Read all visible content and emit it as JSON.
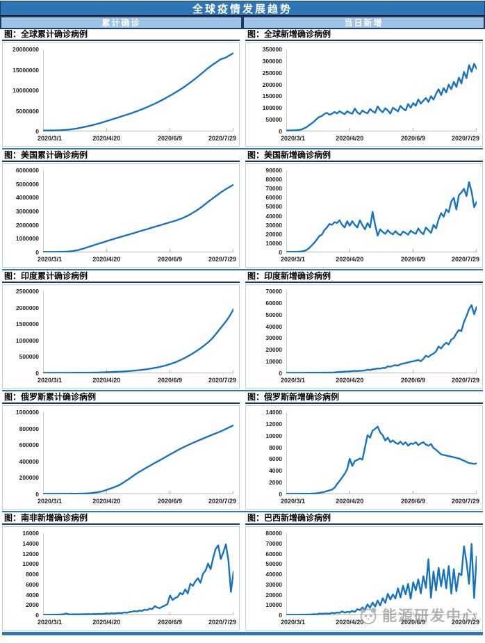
{
  "page": {
    "title": "全球疫情发展趋势",
    "column_headers": [
      "累计确诊",
      "当日新增"
    ],
    "watermark_text": "能源研发中心"
  },
  "colors": {
    "header_bar": "#2E75B6",
    "subheader_bar": "#9DC3E6",
    "border_dark": "#1F3864",
    "title_underline": "#17375E",
    "line": "#1673C4",
    "chart_border": "#BDD0E2",
    "axis_text": "#1F1F1F",
    "bottom_bar": "#2E75B6",
    "watermark_gray": "#888B90"
  },
  "chart_data": [
    {
      "type": "line",
      "title": "图：全球累计确诊病例",
      "x_ticks": [
        "2020/3/1",
        "2020/4/20",
        "2020/6/9",
        "2020/7/29"
      ],
      "ylim": [
        0,
        20000000
      ],
      "yticks": [
        0,
        5000000,
        10000000,
        15000000,
        20000000
      ],
      "values": [
        90000,
        95000,
        100000,
        105000,
        110000,
        120000,
        140000,
        170000,
        200000,
        250000,
        300000,
        380000,
        470000,
        560000,
        670000,
        800000,
        930000,
        1070000,
        1210000,
        1350000,
        1500000,
        1670000,
        1840000,
        2020000,
        2210000,
        2400000,
        2600000,
        2800000,
        3000000,
        3200000,
        3400000,
        3600000,
        3800000,
        4000000,
        4200000,
        4400000,
        4630000,
        4860000,
        5100000,
        5350000,
        5600000,
        5870000,
        6150000,
        6430000,
        6710000,
        7000000,
        7320000,
        7650000,
        8000000,
        8350000,
        8700000,
        9060000,
        9430000,
        9810000,
        10200000,
        10600000,
        11040000,
        11490000,
        11950000,
        12420000,
        12900000,
        13410000,
        13930000,
        14450000,
        14980000,
        15500000,
        15960000,
        16410000,
        16850000,
        17280000,
        17700000,
        17900000,
        18100000,
        18500000,
        18850000,
        19200000
      ]
    },
    {
      "type": "line",
      "title": "图：全球新增确诊病例",
      "x_ticks": [
        "2020/3/1",
        "2020/4/20",
        "2020/6/9",
        "2020/7/29"
      ],
      "ylim": [
        0,
        350000
      ],
      "yticks": [
        0,
        50000,
        100000,
        150000,
        200000,
        250000,
        300000,
        350000
      ],
      "values": [
        1800,
        2000,
        2200,
        2500,
        3000,
        4000,
        6000,
        11000,
        16000,
        25000,
        32000,
        41000,
        52000,
        60000,
        64000,
        73000,
        78000,
        70000,
        74000,
        82000,
        75000,
        85000,
        78000,
        72000,
        85000,
        78000,
        74000,
        96000,
        80000,
        72000,
        88000,
        80000,
        76000,
        94000,
        85000,
        78000,
        106000,
        90000,
        80000,
        98000,
        88000,
        75000,
        100000,
        92000,
        84000,
        108000,
        96000,
        88000,
        116000,
        100000,
        120000,
        108000,
        136000,
        118000,
        130000,
        142000,
        125000,
        150000,
        135000,
        160000,
        180000,
        155000,
        185000,
        166000,
        200000,
        180000,
        212000,
        190000,
        230000,
        205000,
        255000,
        228000,
        284000,
        255000,
        290000,
        268000
      ]
    },
    {
      "type": "line",
      "title": "图：美国累计确诊病例",
      "x_ticks": [
        "2020/3/1",
        "2020/4/20",
        "2020/6/9",
        "2020/7/29"
      ],
      "ylim": [
        0,
        6000000
      ],
      "yticks": [
        0,
        1000000,
        2000000,
        3000000,
        4000000,
        5000000,
        6000000
      ],
      "values": [
        70,
        100,
        150,
        220,
        400,
        700,
        1600,
        3500,
        7800,
        16000,
        26000,
        44000,
        69000,
        102000,
        140000,
        189000,
        245000,
        308000,
        367000,
        429000,
        492000,
        555000,
        613000,
        667000,
        720000,
        790000,
        850000,
        900000,
        960000,
        1020000,
        1070000,
        1130000,
        1180000,
        1240000,
        1290000,
        1350000,
        1400000,
        1460000,
        1520000,
        1570000,
        1630000,
        1680000,
        1740000,
        1800000,
        1850000,
        1910000,
        1960000,
        2020000,
        2080000,
        2130000,
        2190000,
        2240000,
        2300000,
        2360000,
        2430000,
        2500000,
        2590000,
        2680000,
        2780000,
        2890000,
        3000000,
        3130000,
        3260000,
        3400000,
        3550000,
        3700000,
        3840000,
        3980000,
        4120000,
        4260000,
        4400000,
        4520000,
        4640000,
        4750000,
        4860000,
        4970000
      ]
    },
    {
      "type": "line",
      "title": "图：美国新增确诊病例",
      "x_ticks": [
        "2020/3/1",
        "2020/4/20",
        "2020/6/9",
        "2020/7/29"
      ],
      "ylim": [
        0,
        90000
      ],
      "yticks": [
        0,
        10000,
        20000,
        30000,
        40000,
        50000,
        60000,
        70000,
        80000,
        90000
      ],
      "values": [
        5,
        8,
        15,
        30,
        80,
        200,
        450,
        900,
        2000,
        4200,
        7000,
        10000,
        13500,
        17500,
        19000,
        24000,
        27000,
        31000,
        30000,
        33000,
        32000,
        35000,
        30000,
        27000,
        34000,
        29000,
        34000,
        30000,
        27000,
        35000,
        29500,
        25000,
        32000,
        27000,
        44500,
        30000,
        18000,
        25000,
        22000,
        20000,
        24000,
        21000,
        19500,
        23000,
        20000,
        18500,
        22500,
        21000,
        19000,
        23500,
        21500,
        20000,
        26000,
        22000,
        19500,
        27000,
        24000,
        21000,
        30000,
        26000,
        36000,
        43000,
        39000,
        47000,
        44000,
        56000,
        60000,
        47000,
        63000,
        66000,
        70000,
        62000,
        77500,
        67000,
        49500,
        55500
      ]
    },
    {
      "type": "line",
      "title": "图：印度累计确诊病例",
      "x_ticks": [
        "2020/3/1",
        "2020/4/20",
        "2020/6/9",
        "2020/7/29"
      ],
      "ylim": [
        0,
        2500000
      ],
      "yticks": [
        0,
        500000,
        1000000,
        1500000,
        2000000,
        2500000
      ],
      "values": [
        3,
        5,
        28,
        31,
        39,
        50,
        62,
        81,
        110,
        150,
        245,
        330,
        430,
        560,
        900,
        1400,
        1900,
        2550,
        3100,
        4300,
        5900,
        7600,
        9200,
        11500,
        14000,
        17000,
        20000,
        23500,
        27000,
        30000,
        33000,
        37000,
        42500,
        48000,
        54000,
        60000,
        67000,
        74300,
        82000,
        91000,
        101000,
        112000,
        124000,
        137000,
        151000,
        165000,
        182000,
        200000,
        221000,
        243000,
        267000,
        295000,
        320000,
        354000,
        390000,
        426000,
        466000,
        508000,
        553000,
        600000,
        649000,
        700000,
        755000,
        815000,
        875000,
        937000,
        1010000,
        1094000,
        1190000,
        1288000,
        1385000,
        1482000,
        1582000,
        1695000,
        1820000,
        1960000
      ]
    },
    {
      "type": "line",
      "title": "图：印度新增确诊病例",
      "x_ticks": [
        "2020/3/1",
        "2020/4/20",
        "2020/6/9",
        "2020/7/29"
      ],
      "ylim": [
        0,
        70000
      ],
      "yticks": [
        0,
        10000,
        20000,
        30000,
        40000,
        50000,
        60000,
        70000
      ],
      "values": [
        0,
        1,
        2,
        2,
        4,
        5,
        8,
        10,
        15,
        25,
        45,
        50,
        60,
        70,
        90,
        80,
        120,
        160,
        220,
        350,
        560,
        700,
        800,
        1000,
        1100,
        1200,
        1400,
        1600,
        1500,
        1800,
        1700,
        2100,
        2600,
        2400,
        3000,
        3300,
        3700,
        3600,
        4200,
        4000,
        5600,
        5200,
        6000,
        6600,
        6200,
        7400,
        7900,
        8400,
        9000,
        9500,
        9900,
        10500,
        11000,
        10000,
        12000,
        14800,
        13600,
        15500,
        16500,
        18500,
        22700,
        21000,
        24000,
        26000,
        24500,
        28700,
        30000,
        34000,
        37000,
        36000,
        44000,
        49000,
        55000,
        58500,
        50500,
        57000
      ]
    },
    {
      "type": "line",
      "title": "图：俄罗斯累计确诊病例",
      "x_ticks": [
        "2020/3/1",
        "2020/4/20",
        "2020/6/9",
        "2020/7/29"
      ],
      "ylim": [
        0,
        1000000
      ],
      "yticks": [
        0,
        200000,
        400000,
        600000,
        800000,
        1000000
      ],
      "values": [
        2,
        2,
        3,
        4,
        6,
        10,
        15,
        25,
        45,
        90,
        150,
        250,
        440,
        650,
        1000,
        1500,
        2400,
        4100,
        6000,
        8700,
        11900,
        15800,
        21100,
        27900,
        36800,
        47700,
        57900,
        68600,
        81000,
        93500,
        106500,
        124000,
        145000,
        166000,
        187000,
        209000,
        232000,
        252000,
        272000,
        290000,
        308000,
        327000,
        344000,
        362000,
        380000,
        396000,
        414000,
        431000,
        449000,
        467000,
        485000,
        502000,
        519000,
        537000,
        553000,
        569000,
        584000,
        599000,
        613000,
        627000,
        641000,
        654000,
        667000,
        680000,
        694000,
        707000,
        720000,
        733000,
        745000,
        757000,
        770000,
        785000,
        800000,
        815000,
        830000,
        845000
      ]
    },
    {
      "type": "line",
      "title": "图：俄罗斯新增确诊病例",
      "x_ticks": [
        "2020/3/1",
        "2020/4/20",
        "2020/6/9",
        "2020/7/29"
      ],
      "ylim": [
        0,
        14000
      ],
      "yticks": [
        0,
        2000,
        4000,
        6000,
        8000,
        10000,
        12000,
        14000
      ],
      "values": [
        0,
        0,
        0,
        1,
        1,
        2,
        3,
        5,
        10,
        15,
        30,
        50,
        90,
        150,
        230,
        300,
        450,
        580,
        700,
        1050,
        1660,
        2200,
        2800,
        3450,
        4250,
        6060,
        4800,
        5650,
        5850,
        6100,
        5900,
        8000,
        10100,
        9700,
        10900,
        11200,
        11600,
        10600,
        10100,
        9200,
        9700,
        8900,
        9200,
        8800,
        8600,
        9000,
        8500,
        8900,
        8300,
        8700,
        8600,
        8900,
        8400,
        8700,
        8900,
        8500,
        8300,
        8600,
        7900,
        7600,
        7200,
        6800,
        6700,
        6600,
        6500,
        6400,
        6300,
        6200,
        6100,
        5900,
        5700,
        5500,
        5300,
        5250,
        5150,
        5250
      ]
    },
    {
      "type": "line",
      "title": "图：南非新增确诊病例",
      "x_ticks": [
        "2020/3/1",
        "2020/4/20",
        "2020/6/9",
        "2020/7/29"
      ],
      "ylim": [
        0,
        16000
      ],
      "yticks": [
        0,
        2000,
        4000,
        6000,
        8000,
        10000,
        12000,
        14000,
        16000
      ],
      "values": [
        0,
        0,
        1,
        2,
        5,
        10,
        20,
        40,
        70,
        240,
        100,
        60,
        70,
        80,
        70,
        90,
        100,
        110,
        130,
        100,
        150,
        120,
        170,
        140,
        180,
        250,
        200,
        280,
        240,
        300,
        350,
        300,
        450,
        380,
        520,
        600,
        700,
        650,
        800,
        750,
        1000,
        900,
        1200,
        1100,
        1700,
        1400,
        1300,
        1600,
        1800,
        2100,
        3800,
        2900,
        3300,
        3500,
        4300,
        4000,
        5000,
        4200,
        6100,
        5700,
        6600,
        7200,
        6300,
        8100,
        8700,
        10100,
        9000,
        11200,
        13000,
        13700,
        11000,
        12300,
        13900,
        10800,
        4500,
        8500
      ]
    },
    {
      "type": "line",
      "title": "图：巴西新增确诊病例",
      "x_ticks": [
        "2020/3/1",
        "2020/4/20",
        "2020/6/9",
        "2020/7/29"
      ],
      "ylim": [
        0,
        80000
      ],
      "yticks": [
        0,
        10000,
        20000,
        30000,
        40000,
        50000,
        60000,
        70000,
        80000
      ],
      "values": [
        0,
        0,
        0,
        1,
        2,
        5,
        20,
        50,
        120,
        200,
        300,
        500,
        400,
        1100,
        900,
        1100,
        1200,
        1000,
        1900,
        1300,
        2200,
        1800,
        3300,
        2000,
        2900,
        2500,
        3700,
        2700,
        5500,
        4500,
        7200,
        5000,
        10200,
        6800,
        11900,
        8000,
        14000,
        9000,
        16300,
        11600,
        20600,
        15000,
        20000,
        16000,
        26000,
        17000,
        28600,
        20000,
        30400,
        15800,
        32100,
        24000,
        34900,
        21000,
        38000,
        26500,
        54800,
        16800,
        42700,
        24000,
        46300,
        28000,
        44600,
        26000,
        48000,
        20800,
        45000,
        23200,
        41000,
        39000,
        67500,
        52000,
        30500,
        70000,
        16500,
        57500
      ]
    }
  ]
}
